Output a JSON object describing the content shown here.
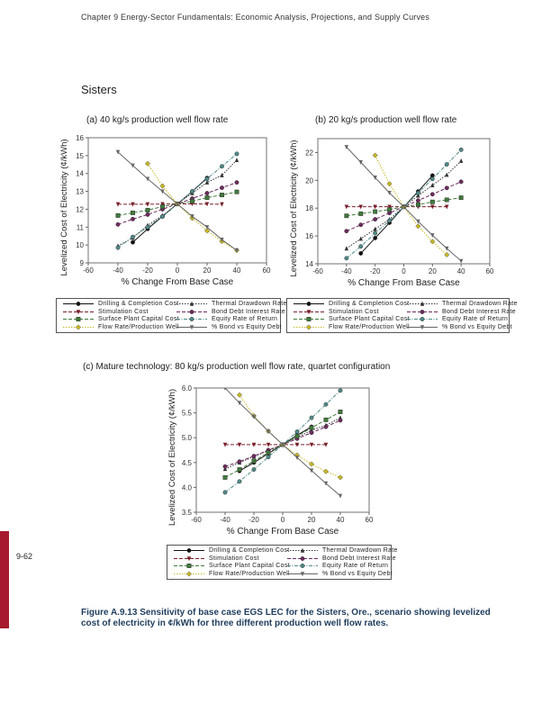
{
  "header": "Chapter 9  Energy-Sector Fundamentals: Economic Analysis, Projections, and Supply Curves",
  "section_title": "Sisters",
  "page_number": "9-62",
  "caption": "Figure A.9.13 Sensitivity of base case EGS LEC for the Sisters, Ore., scenario showing levelized cost of electricity in ¢/kWh for three different production well flow rates.",
  "colors": {
    "accent_bar": "#a6192e",
    "caption": "#1f3d5c"
  },
  "legend": [
    {
      "name": "Drilling & Completion Cost",
      "color": "#111111",
      "marker": "circle",
      "dash": "solid"
    },
    {
      "name": "Thermal Drawdown Rate",
      "color": "#333333",
      "marker": "triangle-up",
      "dash": "dotted"
    },
    {
      "name": "Stimulation Cost",
      "color": "#7a1f2b",
      "marker": "triangle-down",
      "dash": "dashed"
    },
    {
      "name": "Bond Debt Interest Rate",
      "color": "#6e2a5e",
      "marker": "circle",
      "dash": "dashed"
    },
    {
      "name": "Surface Plant Capital Cost",
      "color": "#3f7a3a",
      "marker": "square",
      "dash": "dashed"
    },
    {
      "name": "Equity Rate of Return",
      "color": "#4f8a8a",
      "marker": "circle",
      "dash": "dashdot"
    },
    {
      "name": "Flow Rate/Production Well",
      "color": "#c8b820",
      "marker": "diamond",
      "dash": "dotted"
    },
    {
      "name": "% Bond vs Equity Debt",
      "color": "#666666",
      "marker": "triangle-down",
      "dash": "solid"
    }
  ],
  "chart_data": [
    {
      "type": "line",
      "title": "(a) 40 kg/s production well flow rate",
      "xlabel": "% Change From Base Case",
      "ylabel": "Levelized Cost of Electricity (¢/kWh)",
      "xlim": [
        -60,
        60
      ],
      "ylim": [
        9,
        16
      ],
      "xticks": [
        -60,
        -40,
        -20,
        0,
        20,
        40,
        60
      ],
      "yticks": [
        9,
        10,
        11,
        12,
        13,
        14,
        15,
        16
      ],
      "grid": false,
      "legend_placement": "bottom",
      "x": [
        -40,
        -30,
        -20,
        -10,
        0,
        10,
        20,
        30,
        40
      ],
      "series": [
        {
          "name": "Drilling & Completion Cost",
          "values": [
            null,
            10.15,
            10.9,
            11.6,
            12.3,
            13.0,
            13.75,
            null,
            null
          ]
        },
        {
          "name": "Thermal Drawdown Rate",
          "values": [
            9.95,
            10.4,
            11.1,
            11.65,
            12.3,
            12.9,
            13.5,
            13.9,
            14.75
          ]
        },
        {
          "name": "Stimulation Cost",
          "values": [
            12.28,
            12.28,
            12.28,
            12.29,
            12.3,
            12.3,
            12.29,
            12.28,
            null
          ]
        },
        {
          "name": "Bond Debt Interest Rate",
          "values": [
            11.15,
            11.45,
            11.7,
            12.0,
            12.3,
            12.6,
            12.9,
            13.2,
            13.5
          ]
        },
        {
          "name": "Surface Plant Capital Cost",
          "values": [
            11.65,
            11.8,
            11.95,
            12.15,
            12.3,
            12.45,
            12.65,
            12.8,
            12.97
          ]
        },
        {
          "name": "Equity Rate of Return",
          "values": [
            9.85,
            10.45,
            11.0,
            11.6,
            12.3,
            13.0,
            13.7,
            14.4,
            15.1
          ]
        },
        {
          "name": "Flow Rate/Production Well",
          "values": [
            null,
            null,
            14.55,
            13.3,
            12.3,
            11.5,
            10.8,
            10.2,
            9.7
          ]
        },
        {
          "name": "% Bond vs Equity Debt",
          "values": [
            15.2,
            14.45,
            13.7,
            13.0,
            12.3,
            11.6,
            11.0,
            10.3,
            9.7
          ]
        }
      ]
    },
    {
      "type": "line",
      "title": "(b) 20 kg/s production well flow rate",
      "xlabel": "% Change From Base Case",
      "ylabel": "Levelized Cost of Electricity (¢/kWh)",
      "xlim": [
        -60,
        60
      ],
      "ylim": [
        14,
        23
      ],
      "xticks": [
        -60,
        -40,
        -20,
        0,
        20,
        40,
        60
      ],
      "yticks": [
        14,
        16,
        18,
        20,
        22
      ],
      "grid": false,
      "legend_placement": "bottom",
      "x": [
        -40,
        -30,
        -20,
        -10,
        0,
        10,
        20,
        30,
        40
      ],
      "series": [
        {
          "name": "Drilling & Completion Cost",
          "values": [
            null,
            14.75,
            15.85,
            16.95,
            18.1,
            19.2,
            20.35,
            null,
            null
          ]
        },
        {
          "name": "Thermal Drawdown Rate",
          "values": [
            15.1,
            15.8,
            16.5,
            17.2,
            18.1,
            18.9,
            19.65,
            20.4,
            21.4
          ]
        },
        {
          "name": "Stimulation Cost",
          "values": [
            18.1,
            18.1,
            18.1,
            18.1,
            18.1,
            18.1,
            18.1,
            18.1,
            null
          ]
        },
        {
          "name": "Bond Debt Interest Rate",
          "values": [
            16.35,
            16.8,
            17.2,
            17.65,
            18.1,
            18.55,
            19.0,
            19.45,
            19.9
          ]
        },
        {
          "name": "Surface Plant Capital Cost",
          "values": [
            17.45,
            17.6,
            17.75,
            17.9,
            18.1,
            18.25,
            18.45,
            18.6,
            18.75
          ]
        },
        {
          "name": "Equity Rate of Return",
          "values": [
            14.4,
            15.25,
            16.2,
            17.1,
            18.1,
            19.1,
            20.1,
            21.15,
            22.2
          ]
        },
        {
          "name": "Flow Rate/Production Well",
          "values": [
            null,
            null,
            21.8,
            19.75,
            18.1,
            16.7,
            15.6,
            14.65,
            null
          ]
        },
        {
          "name": "% Bond vs Equity Debt",
          "values": [
            22.4,
            21.3,
            20.2,
            19.1,
            18.1,
            17.05,
            16.05,
            15.1,
            14.2
          ]
        }
      ]
    },
    {
      "type": "line",
      "title": "(c) Mature technology: 80 kg/s production well flow rate, quartet configuration",
      "xlabel": "% Change From Base Case",
      "ylabel": "Levelized Cost of Electricity (¢/kWh)",
      "xlim": [
        -60,
        60
      ],
      "ylim": [
        3.5,
        6.0
      ],
      "xticks": [
        -60,
        -40,
        -20,
        0,
        20,
        40,
        60
      ],
      "yticks": [
        3.5,
        4.0,
        4.5,
        5.0,
        5.5,
        6.0
      ],
      "grid": false,
      "legend_placement": "bottom",
      "x": [
        -40,
        -30,
        -20,
        -10,
        0,
        10,
        20,
        30,
        40
      ],
      "series": [
        {
          "name": "Drilling & Completion Cost",
          "values": [
            null,
            4.33,
            4.5,
            4.68,
            4.86,
            5.05,
            5.22,
            null,
            null
          ]
        },
        {
          "name": "Thermal Drawdown Rate",
          "values": [
            4.37,
            4.5,
            4.62,
            4.74,
            4.86,
            5.0,
            5.15,
            5.25,
            5.4
          ]
        },
        {
          "name": "Stimulation Cost",
          "values": [
            4.86,
            4.86,
            4.86,
            4.86,
            4.86,
            4.86,
            4.86,
            4.86,
            null
          ]
        },
        {
          "name": "Bond Debt Interest Rate",
          "values": [
            4.42,
            4.52,
            4.63,
            4.75,
            4.86,
            4.98,
            5.1,
            5.22,
            5.35
          ]
        },
        {
          "name": "Surface Plant Capital Cost",
          "values": [
            4.2,
            4.36,
            4.53,
            4.7,
            4.86,
            5.03,
            5.2,
            5.36,
            5.52
          ]
        },
        {
          "name": "Equity Rate of Return",
          "values": [
            3.9,
            4.12,
            4.36,
            4.61,
            4.86,
            5.12,
            5.4,
            5.67,
            5.95
          ]
        },
        {
          "name": "Flow Rate/Production Well",
          "values": [
            null,
            5.86,
            5.44,
            5.13,
            4.86,
            4.65,
            4.47,
            4.32,
            4.2
          ]
        },
        {
          "name": "% Bond vs Equity Debt",
          "values": [
            6.0,
            5.7,
            5.42,
            5.13,
            4.86,
            4.6,
            4.34,
            4.08,
            3.83
          ]
        }
      ]
    }
  ]
}
